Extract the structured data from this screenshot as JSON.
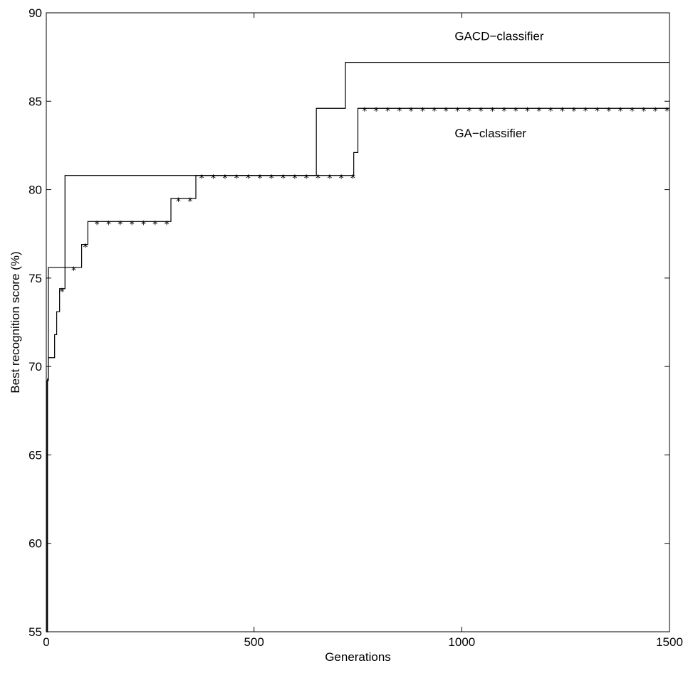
{
  "chart_data": {
    "type": "line",
    "title": "",
    "xlabel": "Generations",
    "ylabel": "Best recognition score (%)",
    "xlim": [
      0,
      1500
    ],
    "ylim": [
      55,
      90
    ],
    "xticks": [
      0,
      500,
      1000,
      1500
    ],
    "yticks": [
      55,
      60,
      65,
      70,
      75,
      80,
      85,
      90
    ],
    "grid": false,
    "legend": "none",
    "annotations": [
      {
        "text": "GACD−classifier",
        "x": 1000,
        "y": 88.7,
        "series": "GACD-classifier"
      },
      {
        "text": "GA−classifier",
        "x": 1000,
        "y": 83.2,
        "series": "GA-classifier"
      }
    ],
    "series": [
      {
        "name": "GACD-classifier",
        "style": "step",
        "marker": "none",
        "x": [
          0,
          3,
          5,
          45,
          650,
          720,
          1500
        ],
        "y": [
          55,
          69.3,
          75.6,
          80.8,
          84.6,
          87.2,
          87.2
        ]
      },
      {
        "name": "GA-classifier",
        "style": "step",
        "marker": "*",
        "x": [
          0,
          2,
          5,
          20,
          25,
          32,
          45,
          85,
          100,
          300,
          360,
          650,
          740,
          750,
          1500
        ],
        "y": [
          55,
          69.2,
          70.5,
          71.8,
          73.1,
          74.4,
          75.6,
          76.9,
          78.2,
          79.5,
          80.8,
          80.8,
          82.1,
          84.6,
          84.6
        ],
        "marker_x": [
          38,
          66,
          94,
          122,
          150,
          178,
          206,
          234,
          262,
          290,
          318,
          346,
          374,
          402,
          430,
          458,
          486,
          514,
          542,
          570,
          598,
          626,
          654,
          682,
          710,
          738,
          766,
          794,
          822,
          850,
          878,
          906,
          934,
          962,
          990,
          1018,
          1046,
          1074,
          1102,
          1130,
          1158,
          1186,
          1214,
          1242,
          1270,
          1298,
          1326,
          1354,
          1382,
          1410,
          1438,
          1466,
          1494
        ]
      }
    ]
  }
}
